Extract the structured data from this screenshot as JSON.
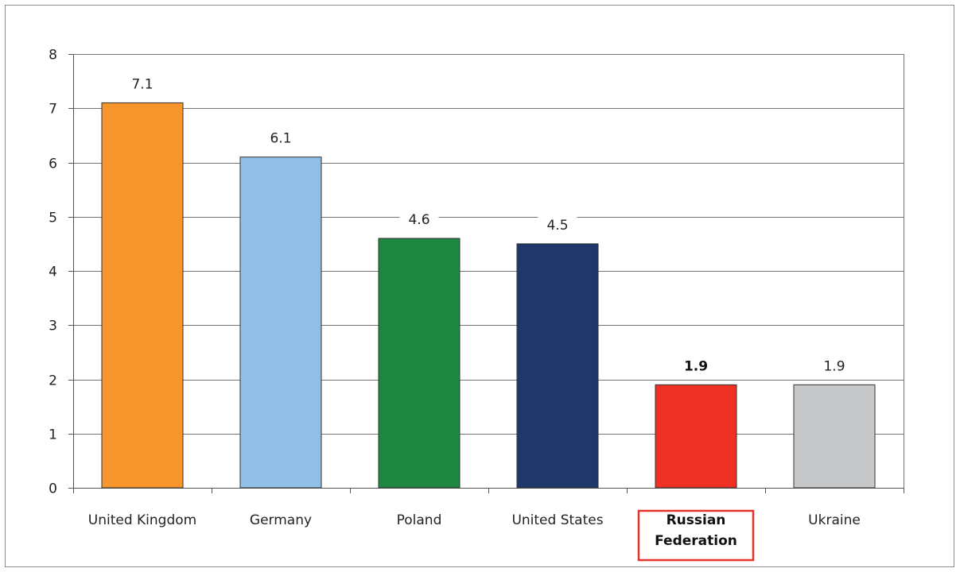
{
  "chart_data": {
    "type": "bar",
    "categories": [
      "United Kingdom",
      "Germany",
      "Poland",
      "United States",
      "Russian Federation",
      "Ukraine"
    ],
    "category_lines": [
      [
        "United Kingdom"
      ],
      [
        "Germany"
      ],
      [
        "Poland"
      ],
      [
        "United States"
      ],
      [
        "Russian",
        "Federation"
      ],
      [
        "Ukraine"
      ]
    ],
    "values": [
      7.1,
      6.1,
      4.6,
      4.5,
      1.9,
      1.9
    ],
    "value_labels": [
      "7.1",
      "6.1",
      "4.6",
      "4.5",
      "1.9",
      "1.9"
    ],
    "colors": [
      "#f7962d",
      "#91bfe6",
      "#1e8741",
      "#1f376b",
      "#ee3124",
      "#c7c8ca"
    ],
    "highlight_index": 4,
    "highlight_color": "#e5332a",
    "yticks": [
      "0",
      "1",
      "2",
      "3",
      "4",
      "5",
      "6",
      "7",
      "8"
    ],
    "ylim": [
      0,
      8
    ],
    "grid": true,
    "title": "",
    "xlabel": "",
    "ylabel": ""
  }
}
